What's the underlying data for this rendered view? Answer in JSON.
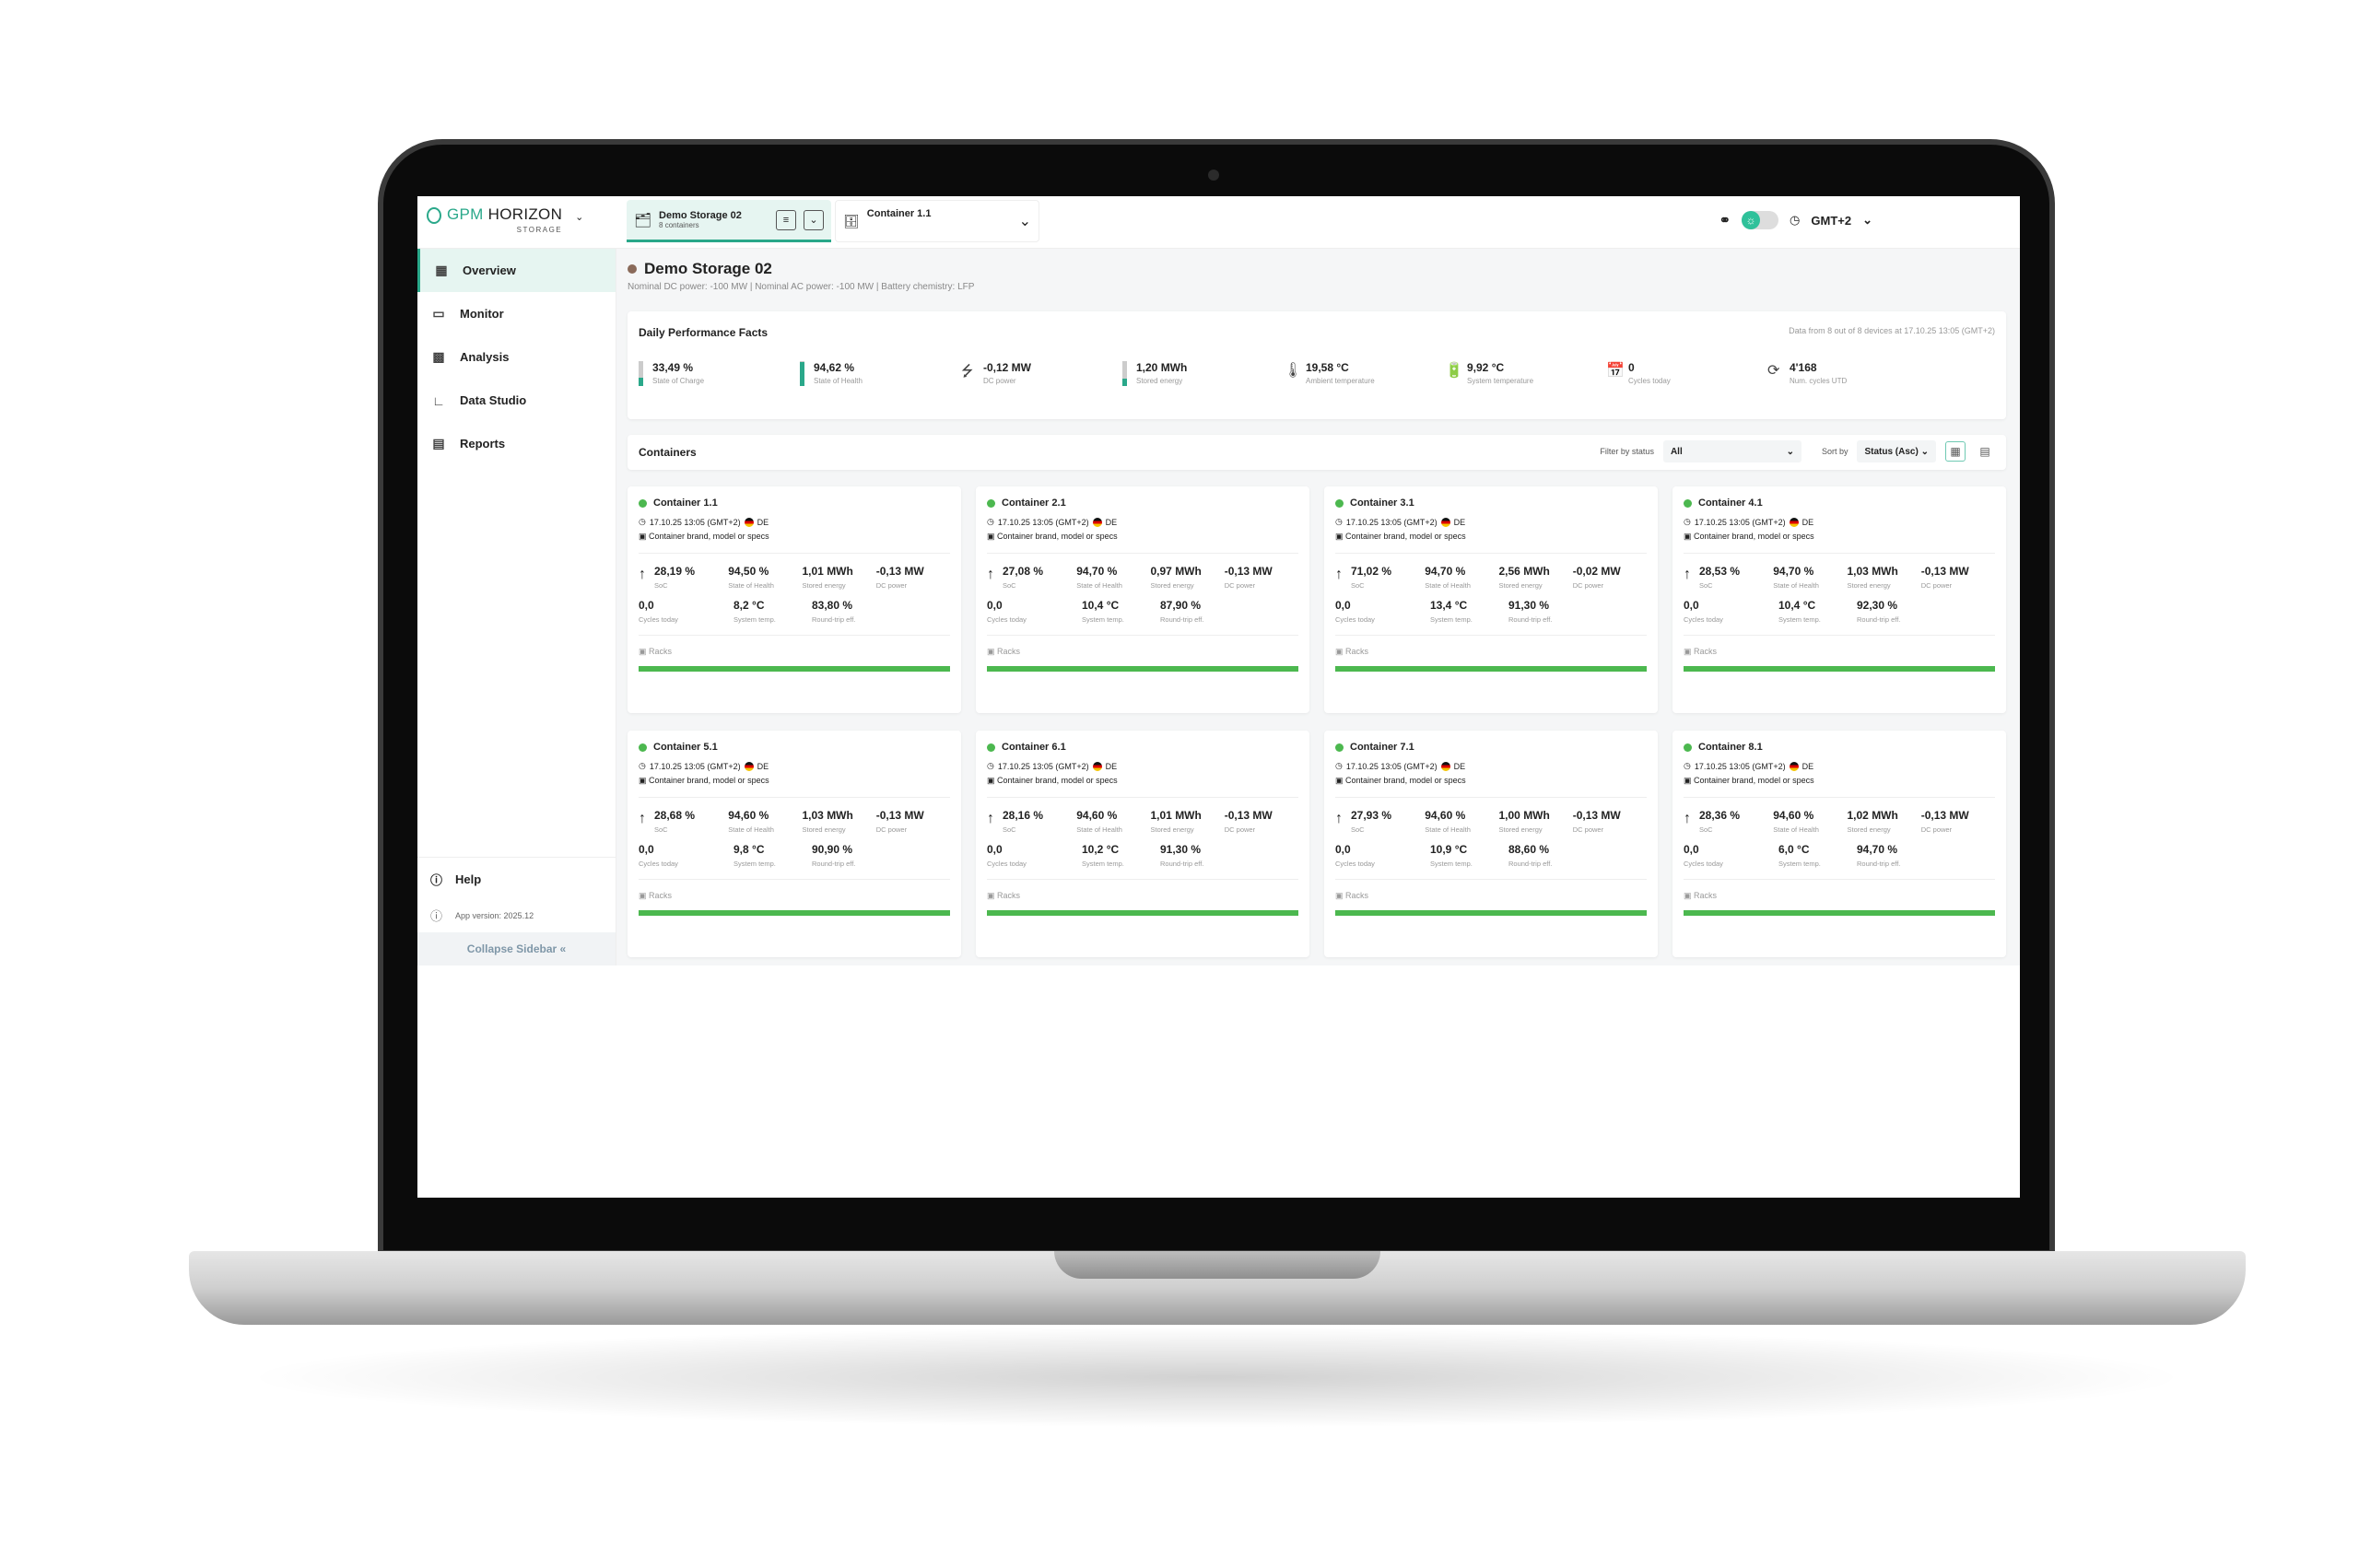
{
  "header": {
    "brand": "GPM HORIZON",
    "brand_accent": "GPM",
    "brand_rest": "HORIZON",
    "brand_sub": "STORAGE",
    "tab_storage": {
      "title": "Demo Storage 02",
      "subtitle": "8 containers"
    },
    "tab_container": {
      "title": "Container 1.1"
    },
    "timezone": "GMT+2"
  },
  "sidebar": {
    "items": [
      {
        "label": "Overview",
        "icon": "grid-icon",
        "active": true
      },
      {
        "label": "Monitor",
        "icon": "monitor-icon"
      },
      {
        "label": "Analysis",
        "icon": "analysis-icon"
      },
      {
        "label": "Data Studio",
        "icon": "chart-line-icon"
      },
      {
        "label": "Reports",
        "icon": "clipboard-icon"
      }
    ],
    "help": "Help",
    "version": "App version: 2025.12",
    "collapse": "Collapse Sidebar"
  },
  "page": {
    "title": "Demo Storage 02",
    "subtitle": "Nominal DC power: -100 MW | Nominal AC power: -100 MW | Battery chemistry: LFP"
  },
  "performance": {
    "title": "Daily Performance Facts",
    "note": "Data from 8 out of 8 devices at 17.10.25 13:05 (GMT+2)",
    "facts": [
      {
        "value": "33,49 %",
        "label": "State of Charge",
        "level": 33.49
      },
      {
        "value": "94,62 %",
        "label": "State of Health",
        "level": 94.62
      },
      {
        "value": "-0,12 MW",
        "label": "DC power",
        "icon": "lightning-icon"
      },
      {
        "value": "1,20 MWh",
        "label": "Stored energy",
        "level": 30
      },
      {
        "value": "19,58 °C",
        "label": "Ambient temperature",
        "icon": "thermometer-icon"
      },
      {
        "value": "9,92 °C",
        "label": "System temperature",
        "icon": "battery-thermometer-icon"
      },
      {
        "value": "0",
        "label": "Cycles today",
        "icon": "calendar-icon"
      },
      {
        "value": "4'168",
        "label": "Num. cycles UTD",
        "icon": "refresh-icon"
      }
    ]
  },
  "containers": {
    "title": "Containers",
    "filter_label": "Filter by status",
    "filter_value": "All",
    "sort_label": "Sort by",
    "sort_value": "Status (Asc)",
    "labels": {
      "soc": "SoC",
      "soh": "State of Health",
      "energy": "Stored energy",
      "dc": "DC power",
      "cycles": "Cycles today",
      "temp": "System temp.",
      "rte": "Round-trip eff.",
      "racks": "Racks"
    },
    "status_color": "#4cb84f",
    "items": [
      {
        "name": "Container 1.1",
        "time": "17.10.25 13:05 (GMT+2)",
        "country": "DE",
        "specs": "Container brand, model or specs",
        "soc": "28,19 %",
        "soh": "94,50 %",
        "energy": "1,01 MWh",
        "dc": "-0,13 MW",
        "cycles": "0,0",
        "temp": "8,2 °C",
        "rte": "83,80 %"
      },
      {
        "name": "Container 2.1",
        "time": "17.10.25 13:05 (GMT+2)",
        "country": "DE",
        "specs": "Container brand, model or specs",
        "soc": "27,08 %",
        "soh": "94,70 %",
        "energy": "0,97 MWh",
        "dc": "-0,13 MW",
        "cycles": "0,0",
        "temp": "10,4 °C",
        "rte": "87,90 %"
      },
      {
        "name": "Container 3.1",
        "time": "17.10.25 13:05 (GMT+2)",
        "country": "DE",
        "specs": "Container brand, model or specs",
        "soc": "71,02 %",
        "soh": "94,70 %",
        "energy": "2,56 MWh",
        "dc": "-0,02 MW",
        "cycles": "0,0",
        "temp": "13,4 °C",
        "rte": "91,30 %"
      },
      {
        "name": "Container 4.1",
        "time": "17.10.25 13:05 (GMT+2)",
        "country": "DE",
        "specs": "Container brand, model or specs",
        "soc": "28,53 %",
        "soh": "94,70 %",
        "energy": "1,03 MWh",
        "dc": "-0,13 MW",
        "cycles": "0,0",
        "temp": "10,4 °C",
        "rte": "92,30 %"
      },
      {
        "name": "Container 5.1",
        "time": "17.10.25 13:05 (GMT+2)",
        "country": "DE",
        "specs": "Container brand, model or specs",
        "soc": "28,68 %",
        "soh": "94,60 %",
        "energy": "1,03 MWh",
        "dc": "-0,13 MW",
        "cycles": "0,0",
        "temp": "9,8 °C",
        "rte": "90,90 %"
      },
      {
        "name": "Container 6.1",
        "time": "17.10.25 13:05 (GMT+2)",
        "country": "DE",
        "specs": "Container brand, model or specs",
        "soc": "28,16 %",
        "soh": "94,60 %",
        "energy": "1,01 MWh",
        "dc": "-0,13 MW",
        "cycles": "0,0",
        "temp": "10,2 °C",
        "rte": "91,30 %"
      },
      {
        "name": "Container 7.1",
        "time": "17.10.25 13:05 (GMT+2)",
        "country": "DE",
        "specs": "Container brand, model or specs",
        "soc": "27,93 %",
        "soh": "94,60 %",
        "energy": "1,00 MWh",
        "dc": "-0,13 MW",
        "cycles": "0,0",
        "temp": "10,9 °C",
        "rte": "88,60 %"
      },
      {
        "name": "Container 8.1",
        "time": "17.10.25 13:05 (GMT+2)",
        "country": "DE",
        "specs": "Container brand, model or specs",
        "soc": "28,36 %",
        "soh": "94,60 %",
        "energy": "1,02 MWh",
        "dc": "-0,13 MW",
        "cycles": "0,0",
        "temp": "6,0 °C",
        "rte": "94,70 %"
      }
    ]
  }
}
